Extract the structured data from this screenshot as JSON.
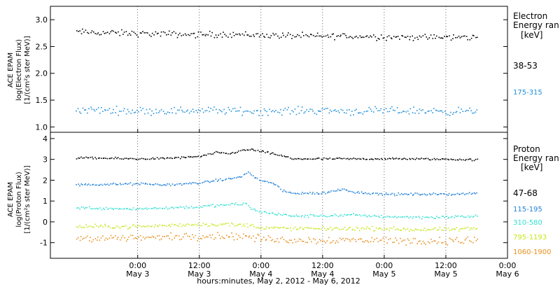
{
  "chart_data": [
    {
      "type": "scatter",
      "panel": "electron",
      "ylabel_lines": [
        "ACE EPAM",
        "log(Electron Flux)",
        "[1/(cm²s ster MeV)]"
      ],
      "ylim": [
        0.9,
        3.25
      ],
      "yticks": [
        "1.0",
        "1.5",
        "2.0",
        "2.5",
        "3.0"
      ],
      "ytick_values": [
        1.0,
        1.5,
        2.0,
        2.5,
        3.0
      ],
      "legend_title_lines": [
        "Electron",
        "Energy ran",
        "[keV]"
      ],
      "series": [
        {
          "name": "38-53",
          "color": "#000000",
          "x": [
            -12,
            0,
            6,
            12,
            18,
            24,
            30,
            36,
            40,
            42,
            44,
            48,
            54,
            60,
            66
          ],
          "y": [
            2.78,
            2.75,
            2.74,
            2.73,
            2.74,
            2.72,
            2.71,
            2.7,
            2.71,
            2.69,
            2.7,
            2.69,
            2.68,
            2.68,
            2.68
          ],
          "noise": 0.05
        },
        {
          "name": "175-315",
          "color": "#1f8fd8",
          "x": [
            -12,
            0,
            6,
            12,
            18,
            24,
            30,
            36,
            42,
            48,
            54,
            60,
            66
          ],
          "y": [
            1.33,
            1.31,
            1.31,
            1.32,
            1.31,
            1.3,
            1.31,
            1.32,
            1.3,
            1.31,
            1.31,
            1.3,
            1.3
          ],
          "noise": 0.06
        }
      ]
    },
    {
      "type": "scatter",
      "panel": "proton",
      "ylabel_lines": [
        "ACE EPAM",
        "log(Proton Flux)",
        "[1/(cm²s ster MeV)]"
      ],
      "ylim": [
        -1.75,
        4.3
      ],
      "yticks": [
        "-1",
        "0",
        "1",
        "2",
        "3",
        "4"
      ],
      "ytick_values": [
        -1,
        0,
        1,
        2,
        3,
        4
      ],
      "legend_title_lines": [
        "Proton",
        "Energy ran",
        "[keV]"
      ],
      "series": [
        {
          "name": "47-68",
          "color": "#000000",
          "x": [
            -12,
            0,
            6,
            12,
            15,
            18,
            20,
            22,
            24,
            26,
            28,
            30,
            36,
            42,
            48,
            54,
            60,
            66
          ],
          "y": [
            3.1,
            3.05,
            3.08,
            3.15,
            3.35,
            3.3,
            3.45,
            3.5,
            3.4,
            3.3,
            3.2,
            3.05,
            3.05,
            3.05,
            3.05,
            3.05,
            3.03,
            3.0
          ],
          "noise": 0.04
        },
        {
          "name": "115-195",
          "color": "#1f7fd8",
          "x": [
            -12,
            0,
            6,
            12,
            15,
            18,
            20,
            21.5,
            23,
            25,
            27,
            28,
            30,
            36,
            40,
            42,
            48,
            54,
            60,
            66
          ],
          "y": [
            1.8,
            1.85,
            1.8,
            1.9,
            2.0,
            2.1,
            2.2,
            2.4,
            2.1,
            1.95,
            1.8,
            1.5,
            1.4,
            1.4,
            1.6,
            1.45,
            1.35,
            1.35,
            1.35,
            1.4
          ],
          "noise": 0.05
        },
        {
          "name": "310-580",
          "color": "#35e0d2",
          "x": [
            -12,
            0,
            6,
            12,
            18,
            21,
            22,
            24,
            27,
            30,
            36,
            42,
            48,
            54,
            60,
            66
          ],
          "y": [
            0.7,
            0.65,
            0.7,
            0.75,
            0.85,
            0.9,
            0.65,
            0.5,
            0.4,
            0.3,
            0.32,
            0.35,
            0.28,
            0.25,
            0.25,
            0.3
          ],
          "noise": 0.06
        },
        {
          "name": "795-1193",
          "color": "#c8e61e",
          "x": [
            -12,
            0,
            6,
            12,
            18,
            22,
            24,
            30,
            36,
            42,
            48,
            54,
            60,
            66
          ],
          "y": [
            -0.2,
            -0.2,
            -0.15,
            -0.1,
            -0.1,
            -0.15,
            -0.25,
            -0.3,
            -0.3,
            -0.3,
            -0.3,
            -0.35,
            -0.35,
            -0.3
          ],
          "noise": 0.08
        },
        {
          "name": "1060-1900",
          "color": "#e8901e",
          "x": [
            -12,
            0,
            6,
            12,
            18,
            22,
            24,
            30,
            36,
            42,
            48,
            54,
            60,
            66
          ],
          "y": [
            -0.75,
            -0.75,
            -0.7,
            -0.65,
            -0.65,
            -0.7,
            -0.8,
            -0.85,
            -0.85,
            -0.85,
            -0.85,
            -0.9,
            -0.9,
            -0.85
          ],
          "noise": 0.15
        }
      ]
    }
  ],
  "x_axis": {
    "xlim": [
      -17,
      72
    ],
    "ticks": [
      {
        "t": 0,
        "time": "0:00",
        "day": "May 3"
      },
      {
        "t": 12,
        "time": "12:00",
        "day": "May 3"
      },
      {
        "t": 24,
        "time": "0:00",
        "day": "May 4"
      },
      {
        "t": 36,
        "time": "12:00",
        "day": "May 4"
      },
      {
        "t": 48,
        "time": "0:00",
        "day": "May 5"
      },
      {
        "t": 60,
        "time": "12:00",
        "day": "May 5"
      },
      {
        "t": 72,
        "time": "0:00",
        "day": "May 6"
      }
    ],
    "label": "hours:minutes, May  2, 2012 - May  6, 2012"
  }
}
